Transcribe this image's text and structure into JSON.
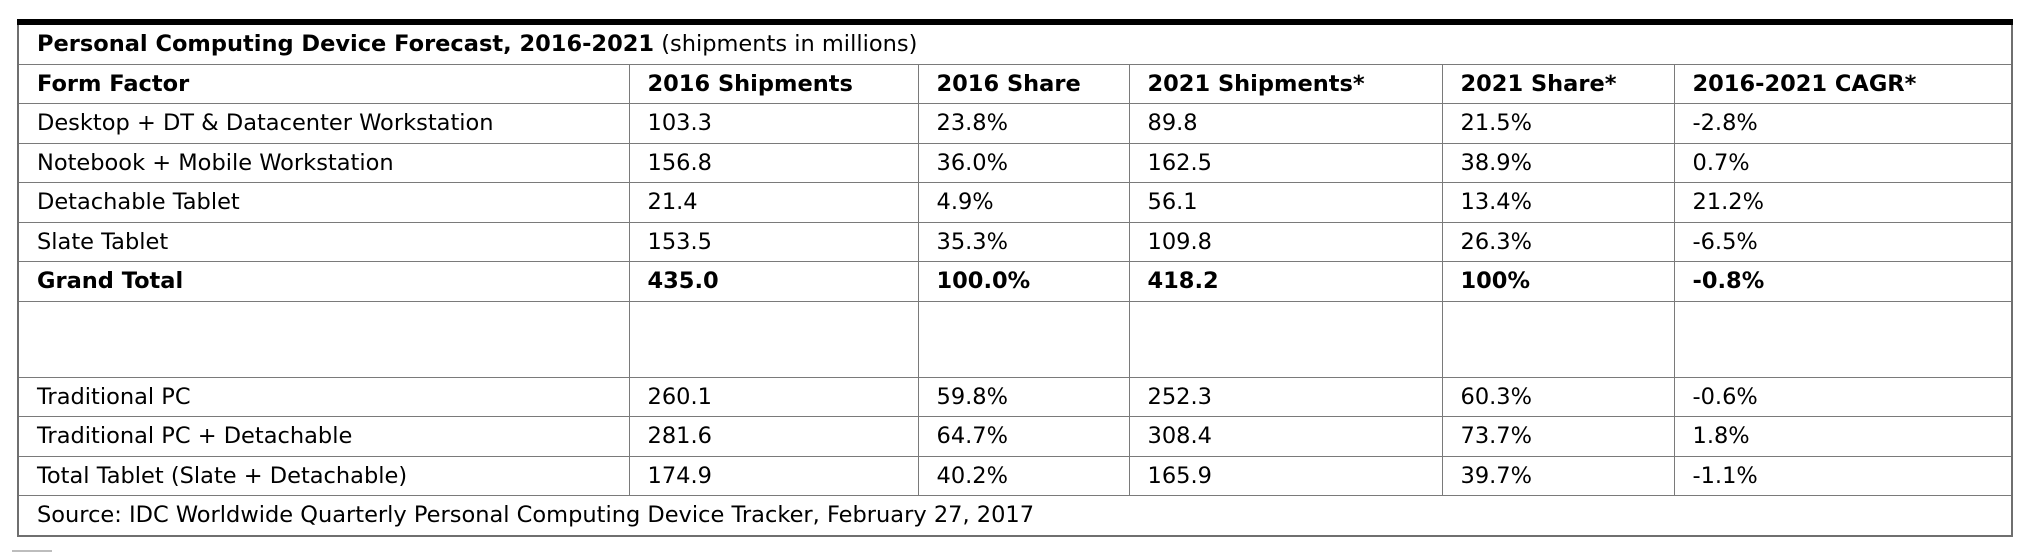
{
  "title": {
    "main": "Personal Computing Device Forecast, 2016-2021",
    "sub": "(shipments in millions)"
  },
  "headers": [
    "Form Factor",
    "2016 Shipments",
    "2016 Share",
    "2021 Shipments*",
    "2021 Share*",
    "2016-2021 CAGR*"
  ],
  "rows": [
    [
      "Desktop + DT & Datacenter Workstation",
      "103.3",
      "23.8%",
      "89.8",
      "21.5%",
      "-2.8%"
    ],
    [
      "Notebook + Mobile Workstation",
      "156.8",
      "36.0%",
      "162.5",
      "38.9%",
      "0.7%"
    ],
    [
      "Detachable Tablet",
      "21.4",
      "4.9%",
      "56.1",
      "13.4%",
      "21.2%"
    ],
    [
      "Slate Tablet",
      "153.5",
      "35.3%",
      "109.8",
      "26.3%",
      "-6.5%"
    ]
  ],
  "total": [
    "Grand Total",
    "435.0",
    "100.0%",
    "418.2",
    "100%",
    "-0.8%"
  ],
  "rows2": [
    [
      "Traditional PC",
      "260.1",
      "59.8%",
      "252.3",
      "60.3%",
      "-0.6%"
    ],
    [
      "Traditional PC + Detachable",
      "281.6",
      "64.7%",
      "308.4",
      "73.7%",
      "1.8%"
    ],
    [
      "Total Tablet (Slate + Detachable)",
      "174.9",
      "40.2%",
      "165.9",
      "39.7%",
      "-1.1%"
    ]
  ],
  "source": "Source: IDC Worldwide Quarterly Personal Computing Device Tracker, February 27, 2017"
}
